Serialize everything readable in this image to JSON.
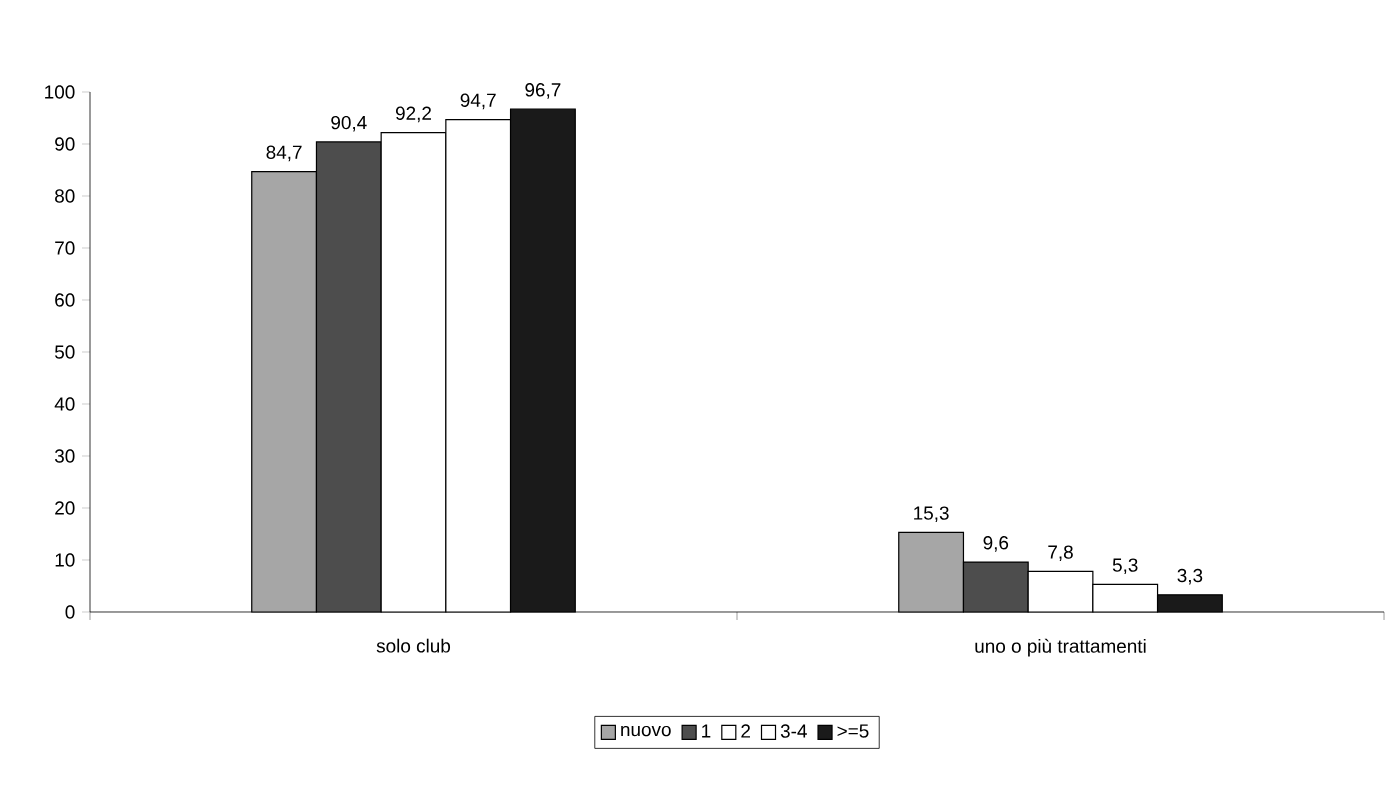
{
  "chart_data": {
    "type": "bar",
    "categories": [
      "solo club",
      "uno o più trattamenti"
    ],
    "series": [
      {
        "name": "nuovo",
        "color": "#a6a6a6",
        "values": [
          84.7,
          15.3
        ],
        "value_labels": [
          "84,7",
          "15,3"
        ]
      },
      {
        "name": "1",
        "color": "#4d4d4d",
        "values": [
          90.4,
          9.6
        ],
        "value_labels": [
          "90,4",
          "9,6"
        ]
      },
      {
        "name": "2",
        "color": "#ffffff",
        "values": [
          92.2,
          7.8
        ],
        "value_labels": [
          "92,2",
          "7,8"
        ]
      },
      {
        "name": "3-4",
        "color": "#ffffff",
        "values": [
          94.7,
          5.3
        ],
        "value_labels": [
          "94,7",
          "5,3"
        ]
      },
      {
        "name": ">=5",
        "color": "#1a1a1a",
        "values": [
          96.7,
          3.3
        ],
        "value_labels": [
          "96,7",
          "3,3"
        ]
      }
    ],
    "ylim": [
      0,
      100
    ],
    "yticks": [
      0,
      10,
      20,
      30,
      40,
      50,
      60,
      70,
      80,
      90,
      100
    ],
    "legend": "bottom"
  }
}
